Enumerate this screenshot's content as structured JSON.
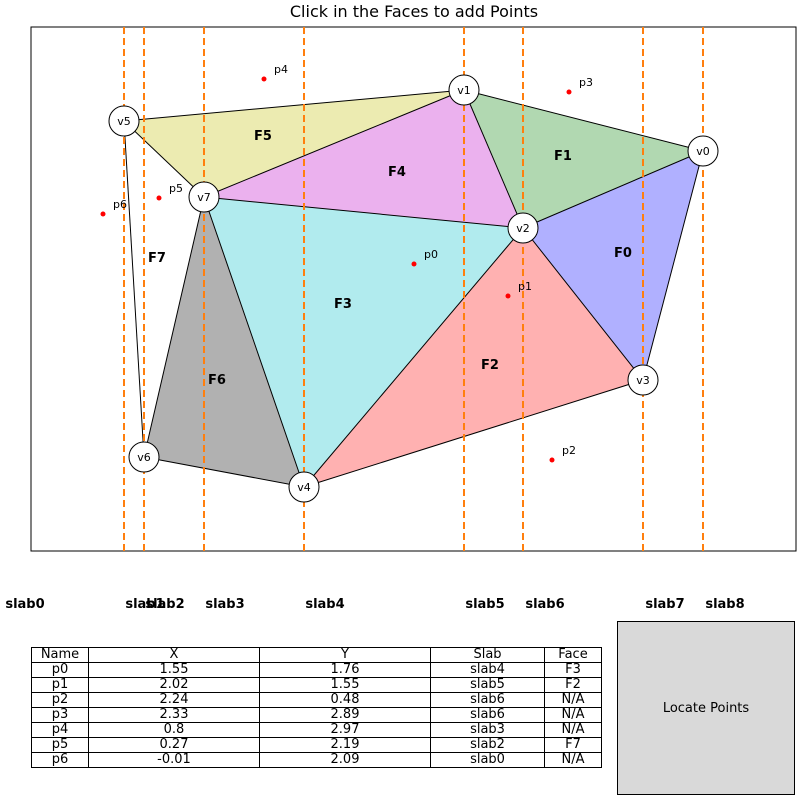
{
  "title": "Click in the Faces to add Points",
  "colors": {
    "F0": "#b0b0ff",
    "F1": "#b1d8b1",
    "F2": "#ffb1b1",
    "F3": "#b1ebee",
    "F4": "#ebb1ee",
    "F5": "#ecebb1",
    "F6": "#b1b1b1",
    "slab_line": "#ff7f0e",
    "point": "#ff0000",
    "button_bg": "#d9d9d9"
  },
  "vertices": [
    {
      "name": "v0"
    },
    {
      "name": "v1"
    },
    {
      "name": "v2"
    },
    {
      "name": "v3"
    },
    {
      "name": "v4"
    },
    {
      "name": "v5"
    },
    {
      "name": "v6"
    },
    {
      "name": "v7"
    }
  ],
  "faces": [
    {
      "name": "F0"
    },
    {
      "name": "F1"
    },
    {
      "name": "F2"
    },
    {
      "name": "F3"
    },
    {
      "name": "F4"
    },
    {
      "name": "F5"
    },
    {
      "name": "F6"
    },
    {
      "name": "F7"
    }
  ],
  "points": [
    {
      "name": "p0"
    },
    {
      "name": "p1"
    },
    {
      "name": "p2"
    },
    {
      "name": "p3"
    },
    {
      "name": "p4"
    },
    {
      "name": "p5"
    },
    {
      "name": "p6"
    }
  ],
  "slabs": [
    "slab0",
    "slab1",
    "slab2",
    "slab3",
    "slab4",
    "slab5",
    "slab6",
    "slab7",
    "slab8"
  ],
  "table": {
    "headers": [
      "Name",
      "X",
      "Y",
      "Slab",
      "Face"
    ],
    "rows": [
      [
        "p0",
        "1.55",
        "1.76",
        "slab4",
        "F3"
      ],
      [
        "p1",
        "2.02",
        "1.55",
        "slab5",
        "F2"
      ],
      [
        "p2",
        "2.24",
        "0.48",
        "slab6",
        "N/A"
      ],
      [
        "p3",
        "2.33",
        "2.89",
        "slab6",
        "N/A"
      ],
      [
        "p4",
        "0.8",
        "2.97",
        "slab3",
        "N/A"
      ],
      [
        "p5",
        "0.27",
        "2.19",
        "slab2",
        "F7"
      ],
      [
        "p6",
        "-0.01",
        "2.09",
        "slab0",
        "N/A"
      ]
    ]
  },
  "button": {
    "label": "Locate Points"
  }
}
